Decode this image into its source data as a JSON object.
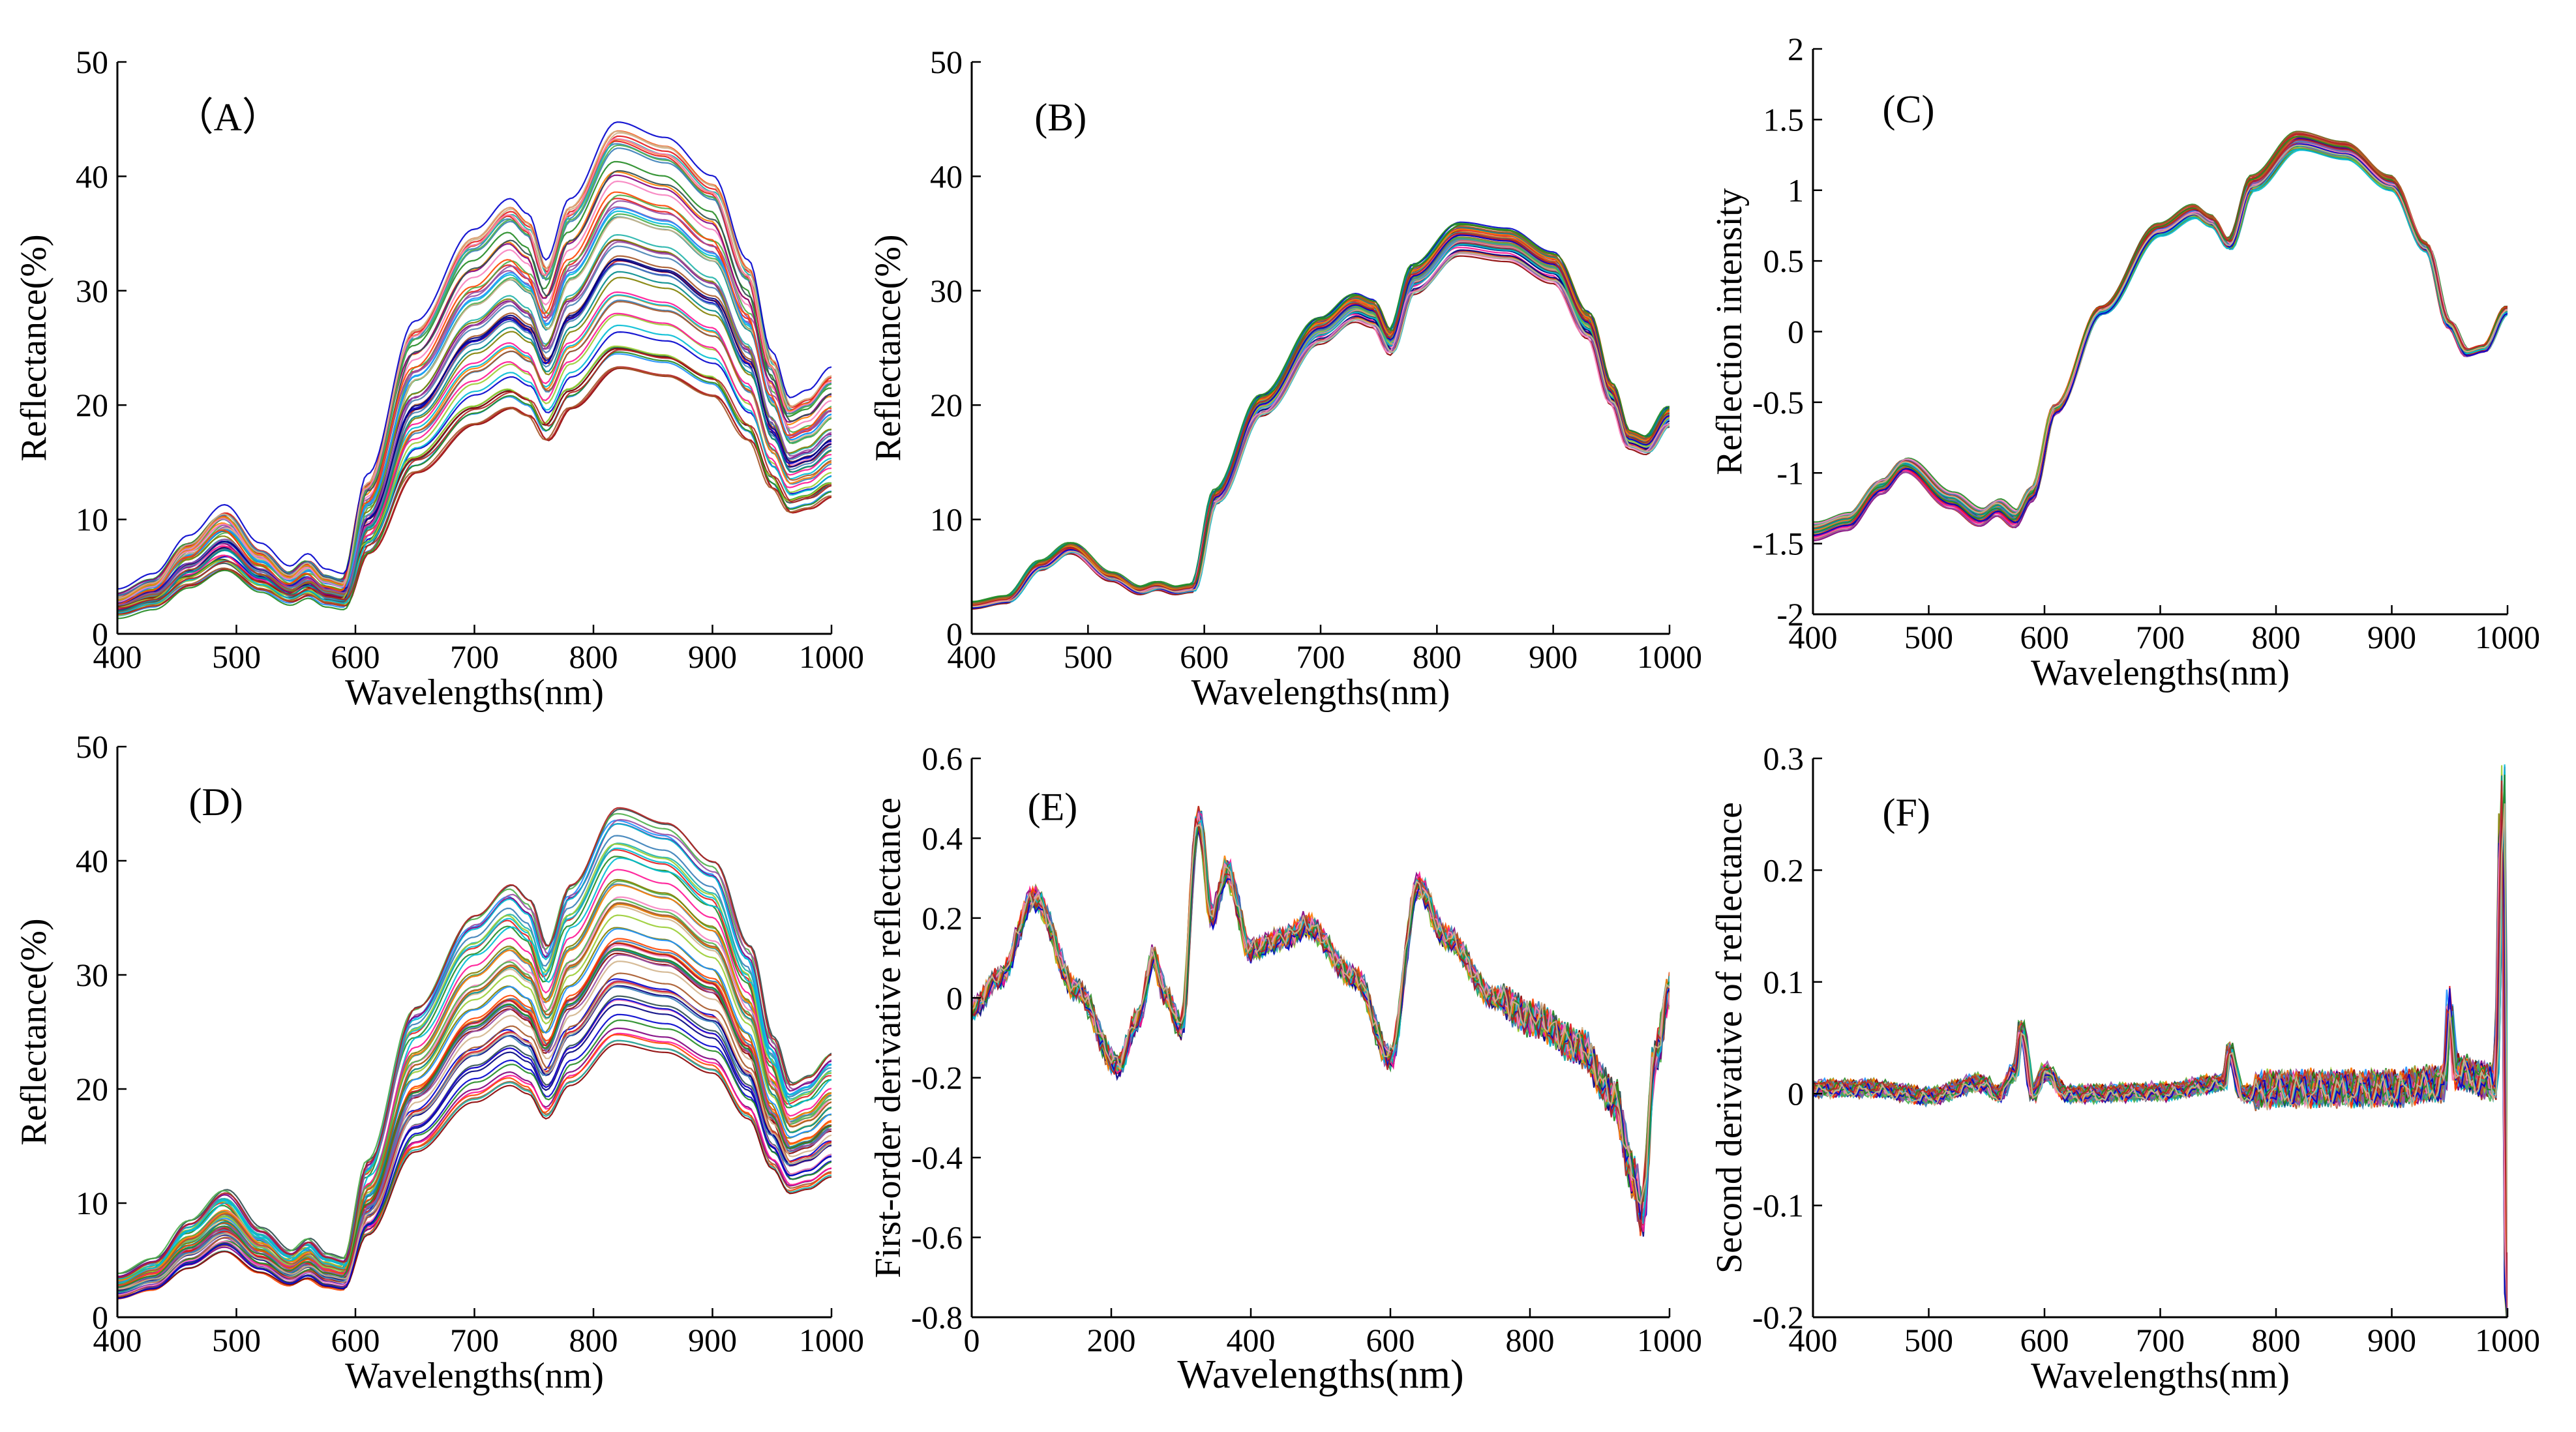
{
  "figure": {
    "panels": [
      "A",
      "B",
      "C",
      "D",
      "E",
      "F"
    ]
  },
  "chart_data": [
    {
      "id": "A",
      "type": "line",
      "label": "（A）",
      "xlabel": "Wavelengths(nm)",
      "ylabel": "Reflectance(%)",
      "xlim": [
        400,
        1000
      ],
      "ylim": [
        0,
        50
      ],
      "xticks": [
        "400",
        "500",
        "600",
        "700",
        "800",
        "900",
        "1000"
      ],
      "yticks": [
        "0",
        "10",
        "20",
        "30",
        "40",
        "50"
      ],
      "n_series": 60,
      "series_profile": "raw reflectance spectra: low near 400 nm, peak ~490 nm, small bump ~560 nm, steep rise after 590 nm, shoulder ~730 nm, dip ~760 nm, maximum ~820 nm, fall to a trough near 960–970 nm",
      "series_range_at_820nm": [
        24,
        44
      ],
      "mean_curve": {
        "x": [
          400,
          430,
          460,
          490,
          520,
          545,
          560,
          575,
          590,
          610,
          650,
          700,
          730,
          745,
          760,
          780,
          820,
          860,
          900,
          930,
          950,
          965,
          980,
          1000
        ],
        "y": [
          2.5,
          3.5,
          6,
          8,
          5.5,
          4,
          4.8,
          3.8,
          3.5,
          10,
          20,
          26,
          28,
          27,
          24,
          28,
          33,
          32,
          29.5,
          24,
          18,
          15,
          15.5,
          17
        ]
      }
    },
    {
      "id": "B",
      "type": "line",
      "label": "(B)",
      "xlabel": "Wavelengths(nm)",
      "ylabel": "Reflectance(%)",
      "xlim": [
        400,
        1000
      ],
      "ylim": [
        0,
        50
      ],
      "xticks": [
        "400",
        "500",
        "600",
        "700",
        "800",
        "900",
        "1000"
      ],
      "yticks": [
        "0",
        "10",
        "20",
        "30",
        "40",
        "50"
      ],
      "n_series": 60,
      "series_profile": "normalized spectra with tightly overlapping curves",
      "mean_curve": {
        "x": [
          400,
          430,
          460,
          485,
          520,
          545,
          560,
          575,
          590,
          610,
          650,
          700,
          730,
          745,
          760,
          780,
          820,
          860,
          900,
          930,
          950,
          965,
          980,
          1000
        ],
        "y": [
          2.5,
          3,
          6,
          7.5,
          5,
          3.8,
          4.2,
          3.8,
          4,
          12,
          20,
          26.5,
          28.5,
          28,
          25.5,
          31,
          34.5,
          34,
          32,
          27,
          21,
          17,
          16.5,
          19
        ]
      }
    },
    {
      "id": "C",
      "type": "line",
      "label": "(C)",
      "xlabel": "Wavelengths(nm)",
      "ylabel": "Reflection intensity",
      "xlim": [
        400,
        1000
      ],
      "ylim": [
        -2,
        2
      ],
      "xticks": [
        "400",
        "500",
        "600",
        "700",
        "800",
        "900",
        "1000"
      ],
      "yticks": [
        "-2",
        "-1.5",
        "-1",
        "-0.5",
        "0",
        "0.5",
        "1",
        "1.5",
        "2"
      ],
      "n_series": 60,
      "series_profile": "standardized spectra (SNV)",
      "mean_curve": {
        "x": [
          400,
          430,
          460,
          480,
          520,
          545,
          560,
          575,
          590,
          610,
          650,
          700,
          730,
          745,
          760,
          780,
          820,
          860,
          900,
          930,
          950,
          965,
          980,
          1000
        ],
        "y": [
          -1.42,
          -1.35,
          -1.1,
          -0.95,
          -1.2,
          -1.32,
          -1.25,
          -1.33,
          -1.15,
          -0.55,
          0.15,
          0.72,
          0.85,
          0.78,
          0.62,
          1.05,
          1.35,
          1.28,
          1.05,
          0.6,
          0.05,
          -0.15,
          -0.12,
          0.15
        ]
      }
    },
    {
      "id": "D",
      "type": "line",
      "label": "(D)",
      "xlabel": "Wavelengths(nm)",
      "ylabel": "Reflectance(%)",
      "xlim": [
        400,
        1000
      ],
      "ylim": [
        0,
        50
      ],
      "xticks": [
        "400",
        "500",
        "600",
        "700",
        "800",
        "900",
        "1000"
      ],
      "yticks": [
        "0",
        "10",
        "20",
        "30",
        "40",
        "50"
      ],
      "n_series": 60,
      "series_profile": "smoothed reflectance spectra, same shape and spread as (A)",
      "series_range_at_820nm": [
        24,
        44
      ],
      "mean_curve": {
        "x": [
          400,
          430,
          460,
          490,
          520,
          545,
          560,
          575,
          590,
          610,
          650,
          700,
          730,
          745,
          760,
          780,
          820,
          860,
          900,
          930,
          950,
          965,
          980,
          1000
        ],
        "y": [
          2.5,
          3.5,
          6,
          8,
          5.5,
          4,
          4.8,
          3.8,
          3.5,
          10,
          20,
          26,
          28,
          27,
          24,
          28,
          33,
          32,
          29.5,
          24,
          18,
          15,
          15.5,
          17
        ]
      }
    },
    {
      "id": "E",
      "type": "line",
      "label": "(E)",
      "xlabel": "Wavelengths(nm)",
      "ylabel": "First-order derivative reflectance",
      "xlim": [
        0,
        1000
      ],
      "ylim": [
        -0.8,
        0.6
      ],
      "xticks": [
        "0",
        "200",
        "400",
        "600",
        "800",
        "1000"
      ],
      "yticks": [
        "-0.8",
        "-0.6",
        "-0.4",
        "-0.2",
        "0",
        "0.2",
        "0.4",
        "0.6"
      ],
      "n_series": 60,
      "series_profile": "first-order derivative spectra",
      "mean_curve": {
        "x": [
          0,
          40,
          90,
          150,
          210,
          240,
          260,
          280,
          300,
          325,
          345,
          365,
          400,
          450,
          480,
          550,
          600,
          640,
          680,
          750,
          800,
          870,
          920,
          950,
          960,
          980,
          1000
        ],
        "y": [
          -0.03,
          0.05,
          0.25,
          0.02,
          -0.17,
          -0.05,
          0.1,
          0,
          -0.08,
          0.45,
          0.2,
          0.32,
          0.12,
          0.15,
          0.18,
          0.05,
          -0.15,
          0.28,
          0.15,
          0,
          -0.05,
          -0.12,
          -0.25,
          -0.45,
          -0.55,
          -0.15,
          0.02
        ]
      }
    },
    {
      "id": "F",
      "type": "line",
      "label": "(F)",
      "xlabel": "Wavelengths(nm)",
      "ylabel": "Second derivative of reflectance",
      "xlim": [
        400,
        1000
      ],
      "ylim": [
        -0.2,
        0.3
      ],
      "xticks": [
        "400",
        "500",
        "600",
        "700",
        "800",
        "900",
        "1000"
      ],
      "yticks": [
        "-0.2",
        "-0.1",
        "0",
        "0.1",
        "0.2",
        "0.3"
      ],
      "n_series": 60,
      "series_profile": "second derivative spectra, near zero with spikes",
      "mean_curve": {
        "x": [
          400,
          450,
          500,
          545,
          560,
          575,
          580,
          590,
          600,
          620,
          700,
          755,
          760,
          770,
          800,
          900,
          945,
          950,
          955,
          990,
          996,
          1000
        ],
        "y": [
          0.005,
          0.005,
          -0.002,
          0.01,
          0,
          0.02,
          0.06,
          0,
          0.02,
          0,
          0.002,
          0.01,
          0.04,
          0,
          0.005,
          0.005,
          0.01,
          0.08,
          0.02,
          0.01,
          0.28,
          -0.2
        ]
      }
    }
  ]
}
